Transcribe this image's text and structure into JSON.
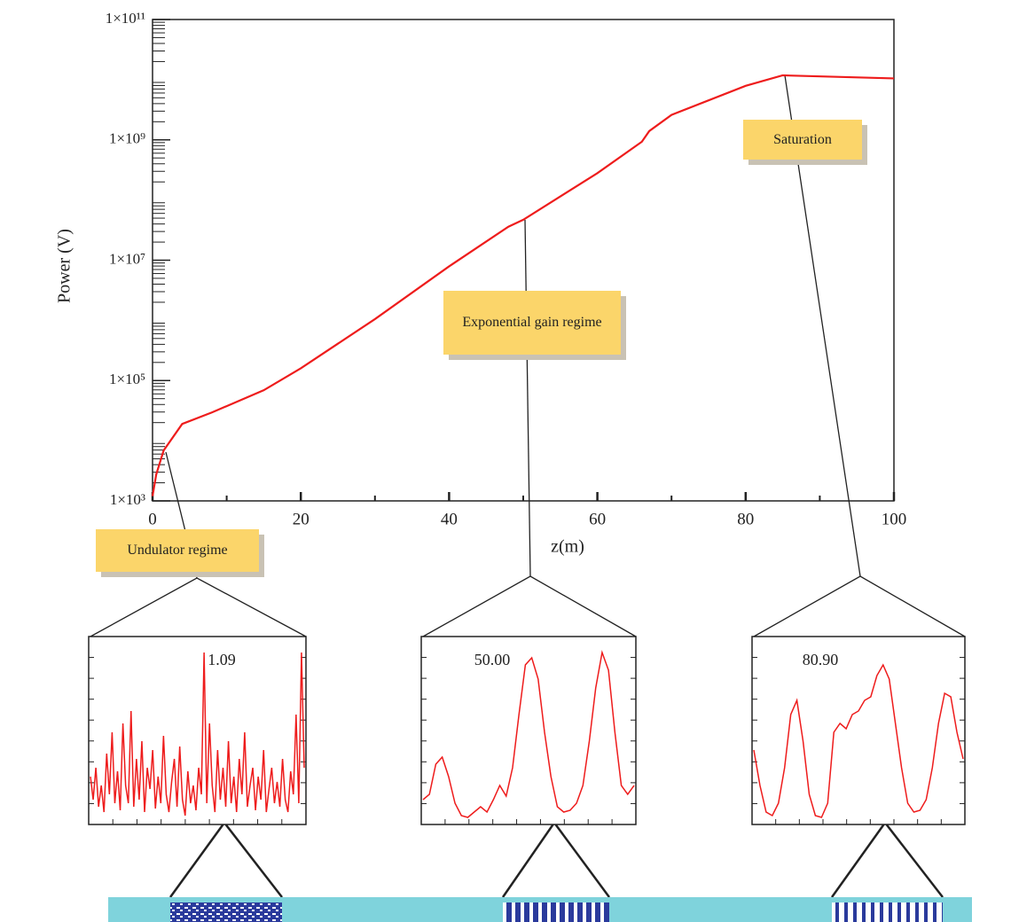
{
  "chart_data": [
    {
      "type": "line",
      "log": true,
      "xlabel": "z(m)",
      "ylabel": "Power (V)",
      "color": "#ee1c1c",
      "x": [
        0,
        0.5,
        1.5,
        4,
        8,
        15,
        20,
        30,
        40,
        48,
        50,
        60,
        66,
        67,
        70,
        80,
        85,
        100
      ],
      "values": [
        1200,
        2750,
        6900,
        19000,
        29500,
        69000,
        160000,
        1050000,
        7900000,
        36000000,
        47000000,
        280000000,
        930000000,
        1400000000,
        2600000000,
        7900000000,
        11800000000,
        10500000000
      ],
      "xlim": [
        0,
        100
      ],
      "xticks": [
        0,
        20,
        40,
        60,
        80,
        100
      ],
      "ylim": [
        1000,
        100000000000
      ],
      "yticks": [
        {
          "value": 1000,
          "label": "1×10³"
        },
        {
          "value": 100000,
          "label": "1×10⁵"
        },
        {
          "value": 10000000,
          "label": "1×10⁷"
        },
        {
          "value": 1000000000,
          "label": "1×10⁹"
        },
        {
          "value": 100000000000,
          "label": "1×10¹¹"
        }
      ],
      "annotations": [
        "Undulator regime",
        "Exponential gain regime",
        "Saturation"
      ]
    },
    {
      "type": "line",
      "label": "1.09",
      "color": "#ee1c1c",
      "ylim": [
        0,
        1
      ],
      "values": [
        0.25,
        0.12,
        0.3,
        0.08,
        0.2,
        0.05,
        0.38,
        0.15,
        0.5,
        0.1,
        0.28,
        0.06,
        0.55,
        0.2,
        0.1,
        0.62,
        0.08,
        0.35,
        0.12,
        0.45,
        0.05,
        0.3,
        0.18,
        0.4,
        0.07,
        0.25,
        0.1,
        0.48,
        0.15,
        0.05,
        0.22,
        0.35,
        0.08,
        0.42,
        0.12,
        0.03,
        0.28,
        0.1,
        0.2,
        0.06,
        0.3,
        0.15,
        0.95,
        0.1,
        0.55,
        0.2,
        0.05,
        0.4,
        0.12,
        0.3,
        0.08,
        0.45,
        0.1,
        0.25,
        0.05,
        0.35,
        0.15,
        0.5,
        0.08,
        0.2,
        0.3,
        0.06,
        0.25,
        0.12,
        0.4,
        0.05,
        0.18,
        0.3,
        0.1,
        0.22,
        0.08,
        0.35,
        0.12,
        0.05,
        0.28,
        0.15,
        0.6,
        0.1,
        0.95,
        0.3
      ]
    },
    {
      "type": "line",
      "label": "50.00",
      "color": "#ee1c1c",
      "ylim": [
        0,
        1
      ],
      "values": [
        0.12,
        0.15,
        0.32,
        0.36,
        0.25,
        0.1,
        0.03,
        0.02,
        0.05,
        0.08,
        0.05,
        0.12,
        0.2,
        0.14,
        0.3,
        0.6,
        0.88,
        0.92,
        0.8,
        0.5,
        0.25,
        0.08,
        0.05,
        0.06,
        0.1,
        0.2,
        0.45,
        0.75,
        0.95,
        0.85,
        0.5,
        0.2,
        0.15,
        0.2
      ]
    },
    {
      "type": "line",
      "label": "80.90",
      "color": "#ee1c1c",
      "ylim": [
        0,
        1
      ],
      "values": [
        0.4,
        0.2,
        0.05,
        0.03,
        0.1,
        0.3,
        0.6,
        0.68,
        0.45,
        0.15,
        0.03,
        0.02,
        0.1,
        0.5,
        0.55,
        0.52,
        0.6,
        0.62,
        0.68,
        0.7,
        0.82,
        0.88,
        0.8,
        0.55,
        0.3,
        0.1,
        0.05,
        0.06,
        0.12,
        0.3,
        0.55,
        0.72,
        0.7,
        0.5,
        0.35
      ]
    }
  ]
}
